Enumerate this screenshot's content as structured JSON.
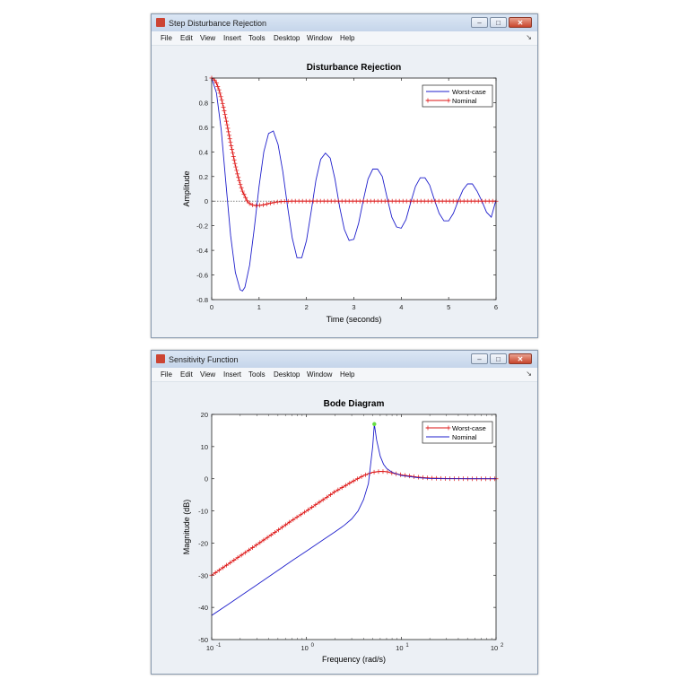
{
  "windows": [
    {
      "title": "Step Disturbance Rejection",
      "menus": [
        "File",
        "Edit",
        "View",
        "Insert",
        "Tools",
        "Desktop",
        "Window",
        "Help"
      ]
    },
    {
      "title": "Sensitivity Function",
      "menus": [
        "File",
        "Edit",
        "View",
        "Insert",
        "Tools",
        "Desktop",
        "Window",
        "Help"
      ]
    }
  ],
  "chart_data": [
    {
      "type": "line",
      "title": "Disturbance Rejection",
      "xlabel": "Time (seconds)",
      "ylabel": "Amplitude",
      "xlim": [
        0,
        6
      ],
      "ylim": [
        -0.8,
        1
      ],
      "xticks": [
        "0",
        "1",
        "2",
        "3",
        "4",
        "5",
        "6"
      ],
      "yticks": [
        "-0.8",
        "-0.6",
        "-0.4",
        "-0.2",
        "0",
        "0.2",
        "0.4",
        "0.6",
        "0.8",
        "1"
      ],
      "legend_position": "top-right",
      "series": [
        {
          "name": "Worst-case",
          "color": "#1f1fcc",
          "marker": "none",
          "x": [
            0,
            0.1,
            0.2,
            0.3,
            0.4,
            0.5,
            0.6,
            0.65,
            0.7,
            0.8,
            0.9,
            1.0,
            1.1,
            1.2,
            1.3,
            1.4,
            1.5,
            1.6,
            1.7,
            1.8,
            1.9,
            2.0,
            2.1,
            2.2,
            2.3,
            2.4,
            2.5,
            2.6,
            2.7,
            2.8,
            2.9,
            3.0,
            3.1,
            3.2,
            3.3,
            3.4,
            3.5,
            3.6,
            3.7,
            3.8,
            3.9,
            4.0,
            4.1,
            4.2,
            4.3,
            4.4,
            4.5,
            4.6,
            4.7,
            4.8,
            4.9,
            5.0,
            5.1,
            5.2,
            5.3,
            5.4,
            5.5,
            5.6,
            5.7,
            5.8,
            5.9,
            6.0
          ],
          "y": [
            1.0,
            0.88,
            0.58,
            0.15,
            -0.28,
            -0.58,
            -0.72,
            -0.73,
            -0.7,
            -0.52,
            -0.22,
            0.12,
            0.4,
            0.55,
            0.57,
            0.46,
            0.24,
            -0.04,
            -0.3,
            -0.46,
            -0.46,
            -0.32,
            -0.08,
            0.17,
            0.34,
            0.39,
            0.35,
            0.18,
            -0.05,
            -0.23,
            -0.32,
            -0.31,
            -0.18,
            0.01,
            0.18,
            0.26,
            0.26,
            0.2,
            0.03,
            -0.13,
            -0.21,
            -0.22,
            -0.15,
            -0.01,
            0.12,
            0.19,
            0.19,
            0.13,
            0.01,
            -0.1,
            -0.16,
            -0.16,
            -0.1,
            0.0,
            0.09,
            0.14,
            0.14,
            0.08,
            0.0,
            -0.09,
            -0.13,
            0.01
          ]
        },
        {
          "name": "Nominal",
          "color": "#dd1111",
          "marker": "+",
          "x": [
            0,
            0.05,
            0.1,
            0.15,
            0.2,
            0.25,
            0.3,
            0.35,
            0.4,
            0.45,
            0.5,
            0.55,
            0.6,
            0.65,
            0.7,
            0.75,
            0.8,
            0.85,
            0.9,
            0.95,
            1.0,
            1.1,
            1.2,
            1.3,
            1.4,
            1.5,
            1.7,
            2.0,
            2.5,
            3.0,
            4.0,
            5.0,
            6.0
          ],
          "y": [
            1.0,
            0.99,
            0.96,
            0.91,
            0.84,
            0.76,
            0.67,
            0.57,
            0.47,
            0.38,
            0.29,
            0.21,
            0.14,
            0.08,
            0.04,
            0.0,
            -0.02,
            -0.03,
            -0.035,
            -0.037,
            -0.035,
            -0.03,
            -0.02,
            -0.012,
            -0.006,
            -0.003,
            0.0,
            0.0,
            0.0,
            0.0,
            0.0,
            0.0,
            0.0
          ]
        }
      ]
    },
    {
      "type": "line",
      "title": "Bode Diagram",
      "xlabel": "Frequency  (rad/s)",
      "ylabel": "Magnitude (dB)",
      "xscale": "log",
      "xlim": [
        0.1,
        100
      ],
      "ylim": [
        -50,
        20
      ],
      "xticks": [
        {
          "base": "10",
          "exp": "-1"
        },
        {
          "base": "10",
          "exp": "0"
        },
        {
          "base": "10",
          "exp": "1"
        },
        {
          "base": "10",
          "exp": "2"
        }
      ],
      "yticks": [
        "-50",
        "-40",
        "-30",
        "-20",
        "-10",
        "0",
        "10",
        "20"
      ],
      "legend_position": "top-right",
      "series": [
        {
          "name": "Worst-case",
          "color": "#dd1111",
          "marker": "+",
          "x": [
            0.1,
            0.15,
            0.2,
            0.3,
            0.5,
            0.7,
            1,
            1.5,
            2,
            3,
            4,
            5,
            6,
            7,
            8,
            10,
            15,
            20,
            30,
            50,
            100
          ],
          "y": [
            -30,
            -26.5,
            -24,
            -20.5,
            -16,
            -13,
            -10,
            -6.5,
            -4,
            -1,
            1,
            2,
            2.3,
            2.2,
            1.8,
            1.2,
            0.5,
            0.2,
            0.05,
            0.0,
            0.0
          ]
        },
        {
          "name": "Nominal",
          "color": "#1f1fcc",
          "marker": "none",
          "x": [
            0.1,
            0.15,
            0.2,
            0.3,
            0.5,
            0.7,
            1,
            1.5,
            2,
            2.5,
            3,
            3.5,
            4,
            4.5,
            5,
            5.2,
            5.5,
            6,
            6.5,
            7,
            8,
            10,
            15,
            20,
            30,
            50,
            100
          ],
          "y": [
            -42.5,
            -39,
            -36.5,
            -33,
            -28.5,
            -25.5,
            -22.5,
            -19,
            -16.5,
            -14.5,
            -12.5,
            -10,
            -6.5,
            -1.5,
            10,
            17,
            12,
            7,
            4.5,
            3.2,
            2,
            1,
            0.3,
            0.1,
            0.0,
            0.0,
            0.0
          ]
        }
      ],
      "peak_marker": {
        "x": 5.2,
        "y": 17,
        "color": "#66dd44"
      }
    }
  ]
}
